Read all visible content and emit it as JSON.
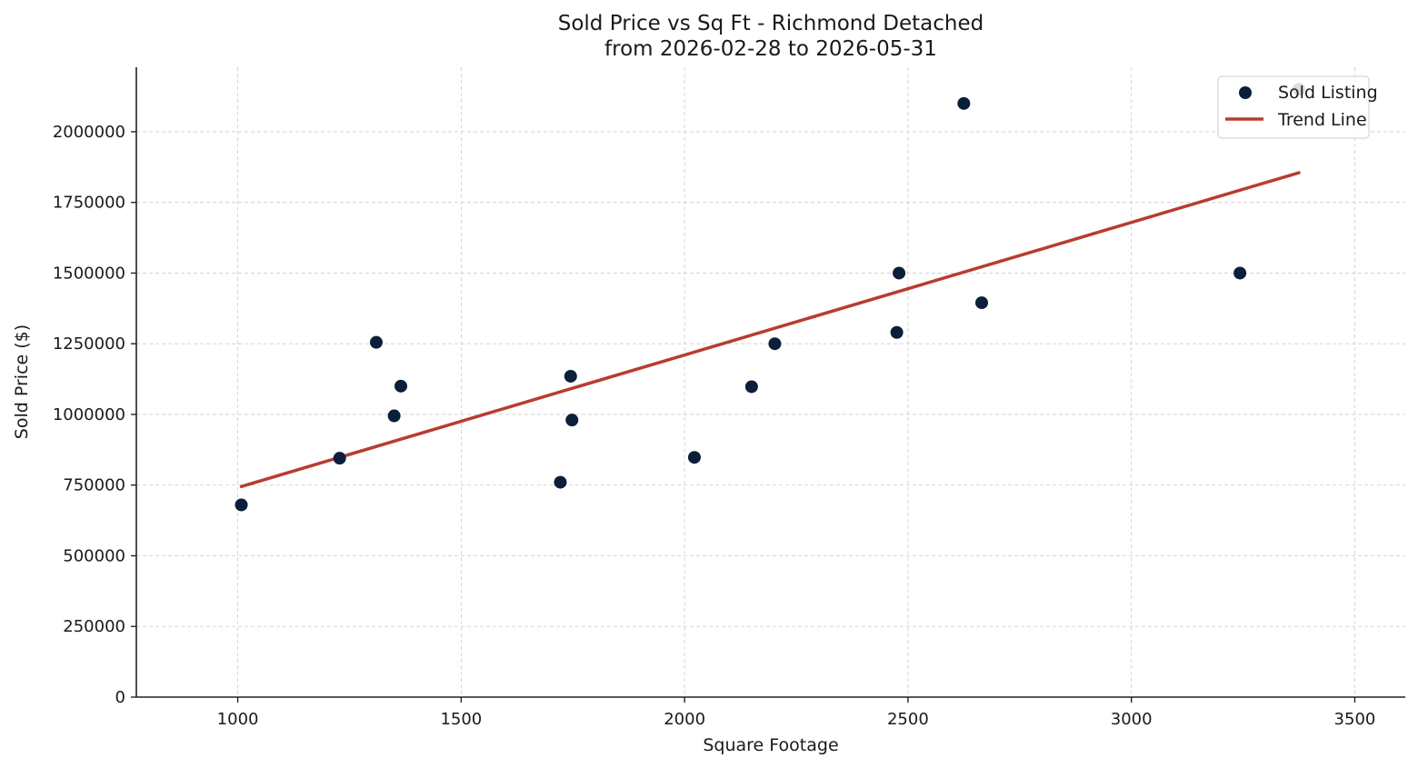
{
  "chart_data": {
    "type": "scatter",
    "title": "Sold Price vs Sq Ft - Richmond Detached",
    "subtitle": "from 2026-02-28 to 2026-05-31",
    "xlabel": "Square Footage",
    "ylabel": "Sold Price ($)",
    "xlim": [
      773,
      3613
    ],
    "ylim": [
      0,
      2228000
    ],
    "x_ticks": [
      1000,
      1500,
      2000,
      2500,
      3000,
      3500
    ],
    "y_ticks": [
      0,
      250000,
      500000,
      750000,
      1000000,
      1250000,
      1500000,
      1750000,
      2000000
    ],
    "grid": true,
    "legend_position": "top-right",
    "colors": {
      "points": "#0b1f3a",
      "trend": "#b83c30"
    },
    "series": [
      {
        "name": "Sold Listing",
        "kind": "scatter",
        "points": [
          {
            "x": 1008,
            "y": 680000
          },
          {
            "x": 1228,
            "y": 845000
          },
          {
            "x": 1310,
            "y": 1255000
          },
          {
            "x": 1350,
            "y": 995000
          },
          {
            "x": 1365,
            "y": 1100000
          },
          {
            "x": 1722,
            "y": 760000
          },
          {
            "x": 1745,
            "y": 1135000
          },
          {
            "x": 1748,
            "y": 980000
          },
          {
            "x": 2022,
            "y": 848000
          },
          {
            "x": 2150,
            "y": 1098000
          },
          {
            "x": 2202,
            "y": 1250000
          },
          {
            "x": 2475,
            "y": 1290000
          },
          {
            "x": 2480,
            "y": 1500000
          },
          {
            "x": 2625,
            "y": 2100000
          },
          {
            "x": 2665,
            "y": 1395000
          },
          {
            "x": 3243,
            "y": 1500000
          },
          {
            "x": 3375,
            "y": 2150000
          }
        ]
      },
      {
        "name": "Trend Line",
        "kind": "line",
        "points": [
          {
            "x": 1008,
            "y": 745000
          },
          {
            "x": 3375,
            "y": 1855000
          }
        ]
      }
    ]
  }
}
